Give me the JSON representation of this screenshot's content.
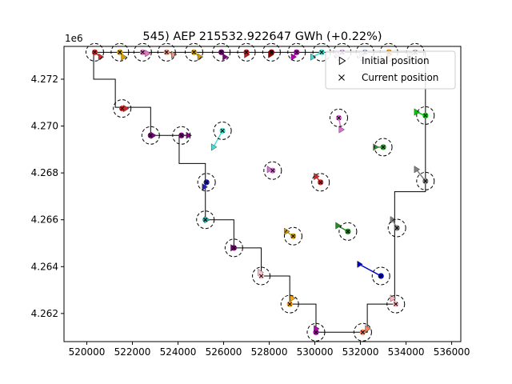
{
  "chart_data": {
    "type": "scatter",
    "title": "545) AEP 215532.922647 GWh (+0.22%)",
    "xlabel": "",
    "ylabel": "",
    "y_offset_label": "1e6",
    "xlim": [
      519000,
      536400
    ],
    "ylim": [
      4260800,
      4273400
    ],
    "y_scale_factor": 1000000,
    "x_ticks": [
      520000,
      522000,
      524000,
      526000,
      528000,
      530000,
      532000,
      534000,
      536000
    ],
    "y_ticks": [
      4262000,
      4264000,
      4266000,
      4268000,
      4270000,
      4272000
    ],
    "x_tick_labels": [
      "520000",
      "522000",
      "524000",
      "526000",
      "528000",
      "530000",
      "532000",
      "534000",
      "536000"
    ],
    "y_tick_labels": [
      "4.262",
      "4.264",
      "4.266",
      "4.268",
      "4.270",
      "4.272"
    ],
    "grid": false,
    "legend": {
      "placement": "top-right",
      "entries": [
        {
          "label": "Initial position",
          "marker": "triangle-right"
        },
        {
          "label": "Current position",
          "marker": "x"
        }
      ]
    },
    "boundary": [
      [
        520300,
        4273150
      ],
      [
        534850,
        4273150
      ],
      [
        534850,
        4267200
      ],
      [
        533500,
        4267200
      ],
      [
        533500,
        4262400
      ],
      [
        532300,
        4262400
      ],
      [
        532300,
        4261200
      ],
      [
        530050,
        4261200
      ],
      [
        530050,
        4262400
      ],
      [
        528900,
        4262400
      ],
      [
        528900,
        4263600
      ],
      [
        527650,
        4263600
      ],
      [
        527650,
        4264800
      ],
      [
        526450,
        4264800
      ],
      [
        526450,
        4266000
      ],
      [
        525200,
        4266000
      ],
      [
        525200,
        4268400
      ],
      [
        524050,
        4268400
      ],
      [
        524050,
        4269600
      ],
      [
        522800,
        4269600
      ],
      [
        522800,
        4270800
      ],
      [
        521250,
        4270800
      ],
      [
        521250,
        4272000
      ],
      [
        520300,
        4272000
      ]
    ],
    "turbines": [
      {
        "color": "#d62728",
        "initial": [
          520600,
          4272950
        ],
        "current": [
          520350,
          4273150
        ]
      },
      {
        "color": "#d4a000",
        "initial": [
          521600,
          4272950
        ],
        "current": [
          521450,
          4273150
        ]
      },
      {
        "color": "#e377c2",
        "initial": [
          522650,
          4273100
        ],
        "current": [
          522450,
          4273150
        ]
      },
      {
        "color": "#e9967a",
        "initial": [
          523800,
          4273050
        ],
        "current": [
          523500,
          4273150
        ]
      },
      {
        "color": "#d4a000",
        "initial": [
          524950,
          4272950
        ],
        "current": [
          524700,
          4273150
        ]
      },
      {
        "color": "#800080",
        "initial": [
          526050,
          4272950
        ],
        "current": [
          525900,
          4273150
        ]
      },
      {
        "color": "#b22222",
        "initial": [
          527000,
          4273050
        ],
        "current": [
          527000,
          4273150
        ]
      },
      {
        "color": "#8b0000",
        "initial": [
          528050,
          4273050
        ],
        "current": [
          528100,
          4273150
        ]
      },
      {
        "color": "#b000b0",
        "initial": [
          529050,
          4272950
        ],
        "current": [
          529200,
          4273150
        ]
      },
      {
        "color": "#40e0d0",
        "initial": [
          529900,
          4272950
        ],
        "current": [
          530300,
          4273150
        ]
      },
      {
        "color": "#e0b0ff",
        "initial": [
          531000,
          4273050
        ],
        "current": [
          531200,
          4273150
        ]
      },
      {
        "color": "#b0c4de",
        "initial": [
          532050,
          4273050
        ],
        "current": [
          532200,
          4273150
        ]
      },
      {
        "color": "#ff8c00",
        "initial": [
          533250,
          4273050
        ],
        "current": [
          533250,
          4273150
        ]
      },
      {
        "color": "#d8bfd8",
        "initial": [
          534150,
          4273050
        ],
        "current": [
          534400,
          4273150
        ]
      },
      {
        "color": "#d62728",
        "initial": [
          521700,
          4270750
        ],
        "current": [
          521550,
          4270750
        ]
      },
      {
        "color": "#800080",
        "initial": [
          522900,
          4269600
        ],
        "current": [
          522800,
          4269600
        ]
      },
      {
        "color": "#800080",
        "initial": [
          524450,
          4269600
        ],
        "current": [
          524150,
          4269600
        ]
      },
      {
        "color": "#40e0d0",
        "initial": [
          525550,
          4269100
        ],
        "current": [
          525950,
          4269800
        ]
      },
      {
        "color": "#1f1fb4",
        "initial": [
          525150,
          4267400
        ],
        "current": [
          525250,
          4267600
        ]
      },
      {
        "color": "#20b2aa",
        "initial": [
          525250,
          4266000
        ],
        "current": [
          525200,
          4266000
        ]
      },
      {
        "color": "#800080",
        "initial": [
          526400,
          4264800
        ],
        "current": [
          526450,
          4264800
        ]
      },
      {
        "color": "#ffc0cb",
        "initial": [
          527600,
          4263750
        ],
        "current": [
          527650,
          4263600
        ]
      },
      {
        "color": "#ffa500",
        "initial": [
          529000,
          4262650
        ],
        "current": [
          528900,
          4262400
        ]
      },
      {
        "color": "#b000b0",
        "initial": [
          530050,
          4261350
        ],
        "current": [
          530050,
          4261200
        ]
      },
      {
        "color": "#ff7f50",
        "initial": [
          532300,
          4261350
        ],
        "current": [
          532100,
          4261200
        ]
      },
      {
        "color": "#da70d6",
        "initial": [
          528000,
          4268150
        ],
        "current": [
          528150,
          4268100
        ]
      },
      {
        "color": "#d4a000",
        "initial": [
          528750,
          4265500
        ],
        "current": [
          529050,
          4265300
        ]
      },
      {
        "color": "#d62728",
        "initial": [
          530050,
          4267850
        ],
        "current": [
          530250,
          4267600
        ]
      },
      {
        "color": "#228b22",
        "initial": [
          531000,
          4265750
        ],
        "current": [
          531450,
          4265500
        ]
      },
      {
        "color": "#da70d6",
        "initial": [
          531150,
          4269850
        ],
        "current": [
          531050,
          4270350
        ]
      },
      {
        "color": "#2ca02c",
        "initial": [
          532650,
          4269100
        ],
        "current": [
          533000,
          4269100
        ]
      },
      {
        "color": "#0000cd",
        "initial": [
          531950,
          4264100
        ],
        "current": [
          532900,
          4263600
        ]
      },
      {
        "color": "#808080",
        "initial": [
          533400,
          4266000
        ],
        "current": [
          533600,
          4265650
        ]
      },
      {
        "color": "#ffb6c1",
        "initial": [
          533400,
          4262650
        ],
        "current": [
          533550,
          4262400
        ]
      },
      {
        "color": "#808080",
        "initial": [
          534450,
          4268150
        ],
        "current": [
          534850,
          4267650
        ]
      },
      {
        "color": "#00cc00",
        "initial": [
          534450,
          4270600
        ],
        "current": [
          534850,
          4270450
        ]
      }
    ]
  }
}
